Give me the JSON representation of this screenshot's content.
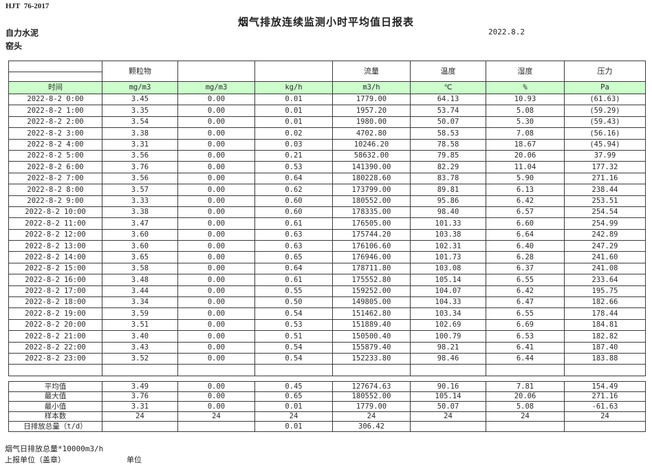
{
  "colors": {
    "unit_row_green": "#ccffcc",
    "negative_red": "#ff0000",
    "border": "#3a3a3a"
  },
  "header": {
    "doc_code": "HJT  76-2017",
    "title": "烟气排放连续监测小时平均值日报表",
    "company": "自力水泥",
    "location": "窑头",
    "date": "2022.8.2"
  },
  "table": {
    "group_headers": [
      "",
      "颗粒物",
      "",
      "",
      "流量",
      "温度",
      "湿度",
      "压力"
    ],
    "units": [
      "时间",
      "mg/m3",
      "mg/m3",
      "kg/h",
      "m3/h",
      "℃",
      "%",
      "Pa"
    ],
    "rows": [
      [
        "2022-8-2 0:00",
        "3.45",
        "0.00",
        "0.01",
        "1779.00",
        "64.13",
        "10.93",
        "(61.63)"
      ],
      [
        "2022-8-2 1:00",
        "3.35",
        "0.00",
        "0.01",
        "1957.20",
        "53.74",
        "5.08",
        "(59.29)"
      ],
      [
        "2022-8-2 2:00",
        "3.54",
        "0.00",
        "0.01",
        "1980.00",
        "50.07",
        "5.30",
        "(59.43)"
      ],
      [
        "2022-8-2 3:00",
        "3.38",
        "0.00",
        "0.02",
        "4702.80",
        "58.53",
        "7.08",
        "(56.16)"
      ],
      [
        "2022-8-2 4:00",
        "3.31",
        "0.00",
        "0.03",
        "10246.20",
        "78.58",
        "18.67",
        "(45.94)"
      ],
      [
        "2022-8-2 5:00",
        "3.56",
        "0.00",
        "0.21",
        "58632.00",
        "79.85",
        "20.06",
        "37.99"
      ],
      [
        "2022-8-2 6:00",
        "3.76",
        "0.00",
        "0.53",
        "141390.00",
        "82.29",
        "11.04",
        "177.32"
      ],
      [
        "2022-8-2 7:00",
        "3.56",
        "0.00",
        "0.64",
        "180228.60",
        "83.78",
        "5.90",
        "271.16"
      ],
      [
        "2022-8-2 8:00",
        "3.57",
        "0.00",
        "0.62",
        "173799.00",
        "89.81",
        "6.13",
        "238.44"
      ],
      [
        "2022-8-2 9:00",
        "3.33",
        "0.00",
        "0.60",
        "180552.00",
        "95.86",
        "6.42",
        "253.51"
      ],
      [
        "2022-8-2 10:00",
        "3.38",
        "0.00",
        "0.60",
        "178335.00",
        "98.40",
        "6.57",
        "254.54"
      ],
      [
        "2022-8-2 11:00",
        "3.47",
        "0.00",
        "0.61",
        "176505.00",
        "101.33",
        "6.60",
        "254.99"
      ],
      [
        "2022-8-2 12:00",
        "3.60",
        "0.00",
        "0.63",
        "175744.20",
        "103.38",
        "6.64",
        "242.89"
      ],
      [
        "2022-8-2 13:00",
        "3.60",
        "0.00",
        "0.63",
        "176106.60",
        "102.31",
        "6.40",
        "247.29"
      ],
      [
        "2022-8-2 14:00",
        "3.65",
        "0.00",
        "0.65",
        "176946.00",
        "101.73",
        "6.28",
        "241.60"
      ],
      [
        "2022-8-2 15:00",
        "3.58",
        "0.00",
        "0.64",
        "178711.80",
        "103.08",
        "6.37",
        "241.08"
      ],
      [
        "2022-8-2 16:00",
        "3.48",
        "0.00",
        "0.61",
        "175552.80",
        "105.14",
        "6.55",
        "233.64"
      ],
      [
        "2022-8-2 17:00",
        "3.44",
        "0.00",
        "0.55",
        "159252.00",
        "104.07",
        "6.42",
        "195.75"
      ],
      [
        "2022-8-2 18:00",
        "3.34",
        "0.00",
        "0.50",
        "149805.00",
        "104.33",
        "6.47",
        "182.66"
      ],
      [
        "2022-8-2 19:00",
        "3.59",
        "0.00",
        "0.54",
        "151462.80",
        "103.34",
        "6.55",
        "178.44"
      ],
      [
        "2022-8-2 20:00",
        "3.51",
        "0.00",
        "0.53",
        "151889.40",
        "102.69",
        "6.69",
        "184.81"
      ],
      [
        "2022-8-2 21:00",
        "3.40",
        "0.00",
        "0.51",
        "150500.40",
        "100.79",
        "6.53",
        "182.82"
      ],
      [
        "2022-8-2 22:00",
        "3.43",
        "0.00",
        "0.54",
        "155879.40",
        "98.21",
        "6.41",
        "187.40"
      ],
      [
        "2022-8-2 23:00",
        "3.52",
        "0.00",
        "0.54",
        "152233.80",
        "98.46",
        "6.44",
        "183.88"
      ],
      [
        "",
        "",
        "",
        "",
        "",
        "",
        "",
        ""
      ]
    ]
  },
  "summary": {
    "rows": [
      [
        "平均值",
        "3.49",
        "0.00",
        "0.45",
        "127674.63",
        "90.16",
        "7.81",
        "154.49"
      ],
      [
        "最大值",
        "3.76",
        "0.00",
        "0.65",
        "180552.00",
        "105.14",
        "20.06",
        "271.16"
      ],
      [
        "最小值",
        "3.31",
        "0.00",
        "0.01",
        "1779.00",
        "50.07",
        "5.08",
        "-61.63"
      ],
      [
        "样本数",
        "24",
        "24",
        "24",
        "24",
        "24",
        "24",
        "24"
      ],
      [
        "日排放总量（t/d）",
        "",
        "",
        "0.01",
        "306.42",
        "",
        "",
        ""
      ]
    ]
  },
  "footer": {
    "note": "烟气日排放总量*10000m3/h",
    "report_unit_label": "上报单位（盖章）",
    "unit_label": "单位"
  }
}
